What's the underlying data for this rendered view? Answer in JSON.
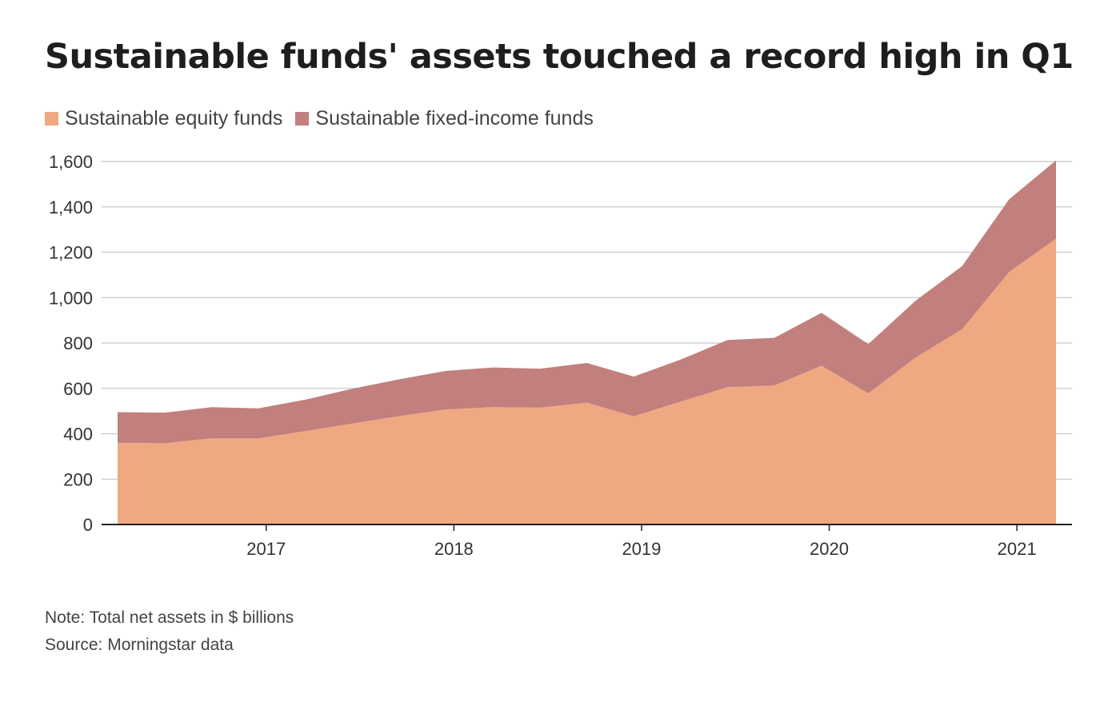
{
  "title": "Sustainable funds' assets touched a record high in Q1",
  "legend": [
    {
      "label": "Sustainable equity funds",
      "color": "#f0a882"
    },
    {
      "label": "Sustainable fixed-income funds",
      "color": "#c17f7d"
    }
  ],
  "notes": {
    "note": "Note: Total net assets in $ billions",
    "source": "Source: Morningstar data"
  },
  "chart_data": {
    "type": "area",
    "stacked": true,
    "x": [
      "2016-03",
      "2016-06",
      "2016-09",
      "2016-12",
      "2017-03",
      "2017-06",
      "2017-09",
      "2017-12",
      "2018-03",
      "2018-06",
      "2018-09",
      "2018-12",
      "2019-03",
      "2019-06",
      "2019-09",
      "2019-12",
      "2020-03",
      "2020-06",
      "2020-09",
      "2020-12",
      "2021-03"
    ],
    "series": [
      {
        "name": "Sustainable equity funds",
        "color": "#f0a882",
        "values": [
          360,
          358,
          380,
          380,
          412,
          445,
          478,
          507,
          517,
          515,
          537,
          477,
          542,
          605,
          613,
          700,
          578,
          735,
          861,
          1113,
          1260
        ]
      },
      {
        "name": "Sustainable fixed-income funds",
        "color": "#c17f7d",
        "values": [
          135,
          135,
          137,
          132,
          138,
          153,
          162,
          170,
          175,
          172,
          175,
          175,
          185,
          208,
          210,
          233,
          217,
          250,
          278,
          320,
          345
        ]
      }
    ],
    "ylim": [
      0,
      1600
    ],
    "yticks": [
      "0",
      "200",
      "400",
      "600",
      "800",
      "1,000",
      "1,200",
      "1,400",
      "1,600"
    ],
    "xticks": [
      "2017",
      "2018",
      "2019",
      "2020",
      "2021"
    ],
    "xlabel": "",
    "ylabel": "",
    "grid": true,
    "legend_position": "top-left"
  }
}
